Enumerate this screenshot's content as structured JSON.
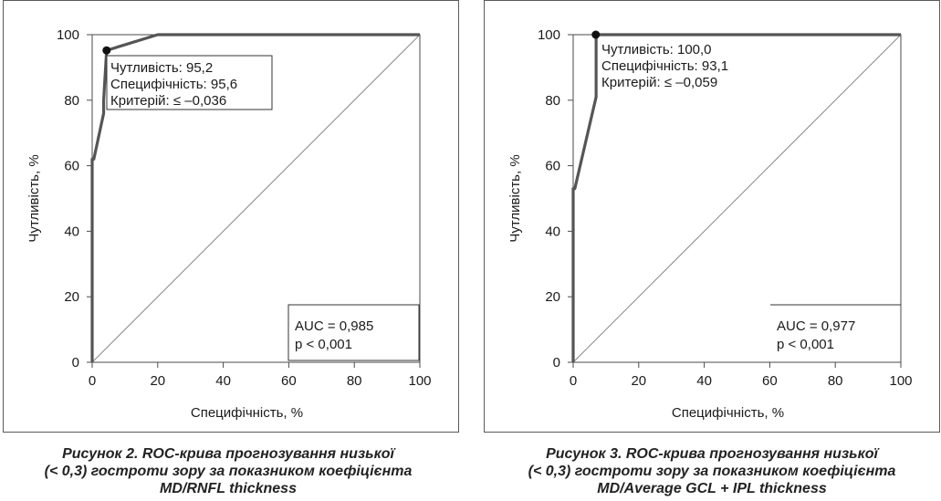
{
  "chart_data": [
    {
      "type": "line",
      "xlabel": "Специфічність, %",
      "ylabel": "Чутливість, %",
      "xlim": [
        0,
        100
      ],
      "ylim": [
        0,
        100
      ],
      "x_ticks": [
        "0",
        "20",
        "40",
        "60",
        "80",
        "100"
      ],
      "y_ticks": [
        "0",
        "20",
        "40",
        "60",
        "80",
        "100"
      ],
      "grid": false,
      "series": [
        {
          "x": [
            0,
            0,
            0.5,
            3.5,
            3.5,
            4.4,
            20,
            100
          ],
          "y": [
            0,
            62,
            62,
            76,
            80,
            95.2,
            100,
            100
          ]
        }
      ],
      "reference_line": {
        "x": [
          0,
          100
        ],
        "y": [
          0,
          100
        ]
      },
      "cutoff_point": {
        "x": 4.4,
        "y": 95.2
      },
      "annotation_lines": [
        "Чутливість: 95,2",
        "Специфічність: 95,6",
        "Критерій: ≤ –0,036"
      ],
      "auc_lines": [
        "AUC = 0,985",
        "p < 0,001"
      ]
    },
    {
      "type": "line",
      "xlabel": "Специфічність, %",
      "ylabel": "Чутливість, %",
      "xlim": [
        0,
        100
      ],
      "ylim": [
        0,
        100
      ],
      "x_ticks": [
        "0",
        "20",
        "40",
        "60",
        "80",
        "100"
      ],
      "y_ticks": [
        "0",
        "20",
        "40",
        "60",
        "80",
        "100"
      ],
      "grid": false,
      "series": [
        {
          "x": [
            0,
            0,
            0.5,
            7,
            7,
            100
          ],
          "y": [
            0,
            53,
            53,
            81,
            100,
            100
          ]
        }
      ],
      "reference_line": {
        "x": [
          0,
          100
        ],
        "y": [
          0,
          100
        ]
      },
      "cutoff_point": {
        "x": 6.9,
        "y": 100
      },
      "annotation_lines": [
        "Чутливість: 100,0",
        "Специфічність: 93,1",
        "Критерій: ≤ –0,059"
      ],
      "auc_lines": [
        "AUC = 0,977",
        "p < 0,001"
      ]
    }
  ],
  "captions": [
    {
      "lines": [
        "Рисунок 2.  ROC-крива прогнозування низької",
        "(< 0,3) гостроти зору за показником коефіцієнта",
        "MD/RNFL thickness"
      ]
    },
    {
      "lines": [
        "Рисунок 3.    ROC-крива прогнозування низької",
        "(< 0,3) гостроти зору за показником коефіцієнта",
        "MD/Average GCL + IPL thickness"
      ]
    }
  ]
}
